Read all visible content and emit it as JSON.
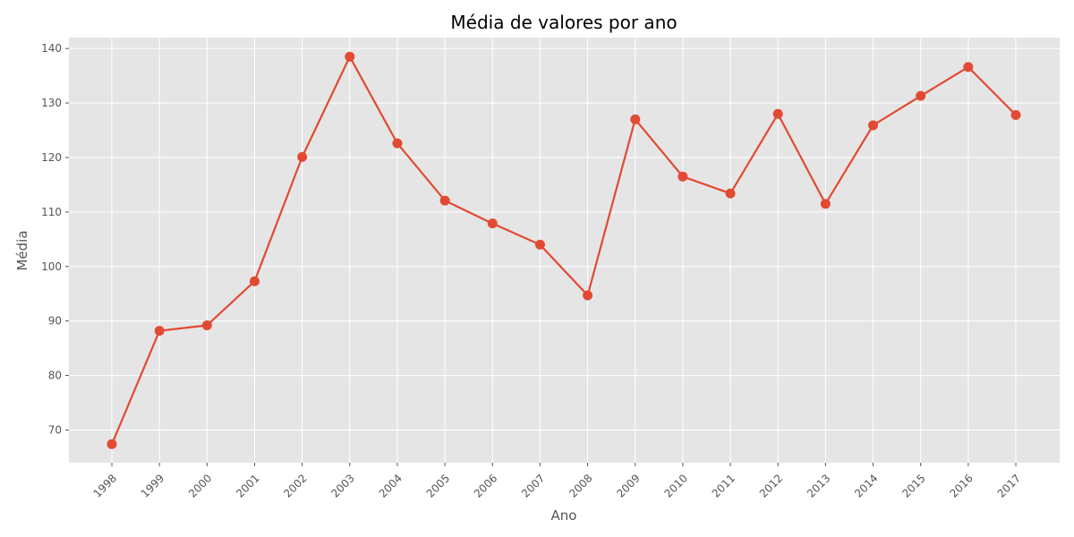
{
  "chart_data": {
    "type": "line",
    "title": "Média de valores por ano",
    "xlabel": "Ano",
    "ylabel": "Média",
    "x": [
      "1998",
      "1999",
      "2000",
      "2001",
      "2002",
      "2003",
      "2004",
      "2005",
      "2006",
      "2007",
      "2008",
      "2009",
      "2010",
      "2011",
      "2012",
      "2013",
      "2014",
      "2015",
      "2016",
      "2017"
    ],
    "series": [
      {
        "values": [
          67.4,
          88.2,
          89.2,
          97.3,
          120.1,
          138.5,
          122.6,
          112.1,
          107.9,
          104.0,
          94.7,
          127.0,
          116.5,
          113.4,
          128.0,
          111.5,
          125.9,
          131.3,
          136.6,
          127.8
        ],
        "color": "#e24a33"
      }
    ],
    "ylim": [
      64,
      142
    ],
    "yticks": [
      70,
      80,
      90,
      100,
      110,
      120,
      130,
      140
    ],
    "grid": true,
    "background": "#e5e5e5",
    "marker": "circle"
  }
}
